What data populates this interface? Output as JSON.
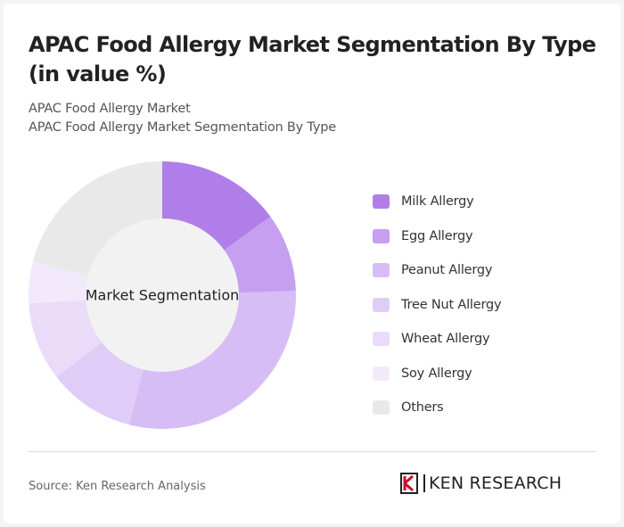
{
  "header": {
    "title": "APAC Food Allergy Market Segmentation By Type (in value %)",
    "subtitle_1": "APAC Food Allergy Market",
    "subtitle_2": "APAC Food Allergy Market Segmentation By Type"
  },
  "chart_data": {
    "type": "pie",
    "variant": "donut",
    "center_label": "Market Segmentation",
    "series": [
      {
        "name": "Milk Allergy",
        "value": 15,
        "color": "#b07ee8"
      },
      {
        "name": "Egg Allergy",
        "value": 9.5,
        "color": "#c69ff0"
      },
      {
        "name": "Peanut Allergy",
        "value": 29.5,
        "color": "#d7bdf5"
      },
      {
        "name": "Tree Nut Allergy",
        "value": 10.5,
        "color": "#e0cdf7"
      },
      {
        "name": "Wheat Allergy",
        "value": 9.5,
        "color": "#eadcf9"
      },
      {
        "name": "Soy Allergy",
        "value": 5,
        "color": "#f2eafb"
      },
      {
        "name": "Others",
        "value": 21,
        "color": "#e9e9e9"
      }
    ],
    "center_color": "#f2f2f2",
    "legend_position": "right"
  },
  "footer": {
    "source": "Source: Ken Research Analysis",
    "logo_text": "KEN RESEARCH"
  }
}
